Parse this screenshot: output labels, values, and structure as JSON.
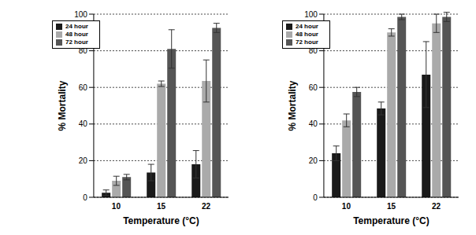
{
  "chart_data": [
    {
      "type": "bar",
      "categories": [
        "10",
        "15",
        "22"
      ],
      "x_label": "Temperature (°C)",
      "y_label": "% Mortality",
      "ylim": [
        0,
        100
      ],
      "yticks": [
        0,
        20,
        40,
        60,
        80,
        100
      ],
      "grid": true,
      "legend": "upper left",
      "series": [
        {
          "name": "24 hour",
          "color": "#1a1a1a",
          "values": [
            2.5,
            13.5,
            18
          ],
          "errors": [
            1.5,
            4.5,
            7.5
          ]
        },
        {
          "name": "48 hour",
          "color": "#aaaaaa",
          "values": [
            9,
            62,
            63.5
          ],
          "errors": [
            2.5,
            1.5,
            11.5
          ]
        },
        {
          "name": "72 hour",
          "color": "#555555",
          "values": [
            11,
            81,
            92.5
          ],
          "errors": [
            1.5,
            10.5,
            2.5
          ]
        }
      ]
    },
    {
      "type": "bar",
      "categories": [
        "10",
        "15",
        "22"
      ],
      "x_label": "Temperature (°C)",
      "y_label": "% Mortality",
      "ylim": [
        0,
        100
      ],
      "yticks": [
        0,
        20,
        40,
        60,
        80,
        100
      ],
      "grid": true,
      "legend": "upper left",
      "series": [
        {
          "name": "24 hour",
          "color": "#1a1a1a",
          "values": [
            24,
            48.5,
            67
          ],
          "errors": [
            4,
            3.5,
            18
          ]
        },
        {
          "name": "48 hour",
          "color": "#aaaaaa",
          "values": [
            42,
            90,
            95
          ],
          "errors": [
            3.5,
            2,
            5
          ]
        },
        {
          "name": "72 hour",
          "color": "#555555",
          "values": [
            57.5,
            98.5,
            98.5
          ],
          "errors": [
            2.5,
            1.5,
            2.5
          ]
        }
      ]
    }
  ]
}
